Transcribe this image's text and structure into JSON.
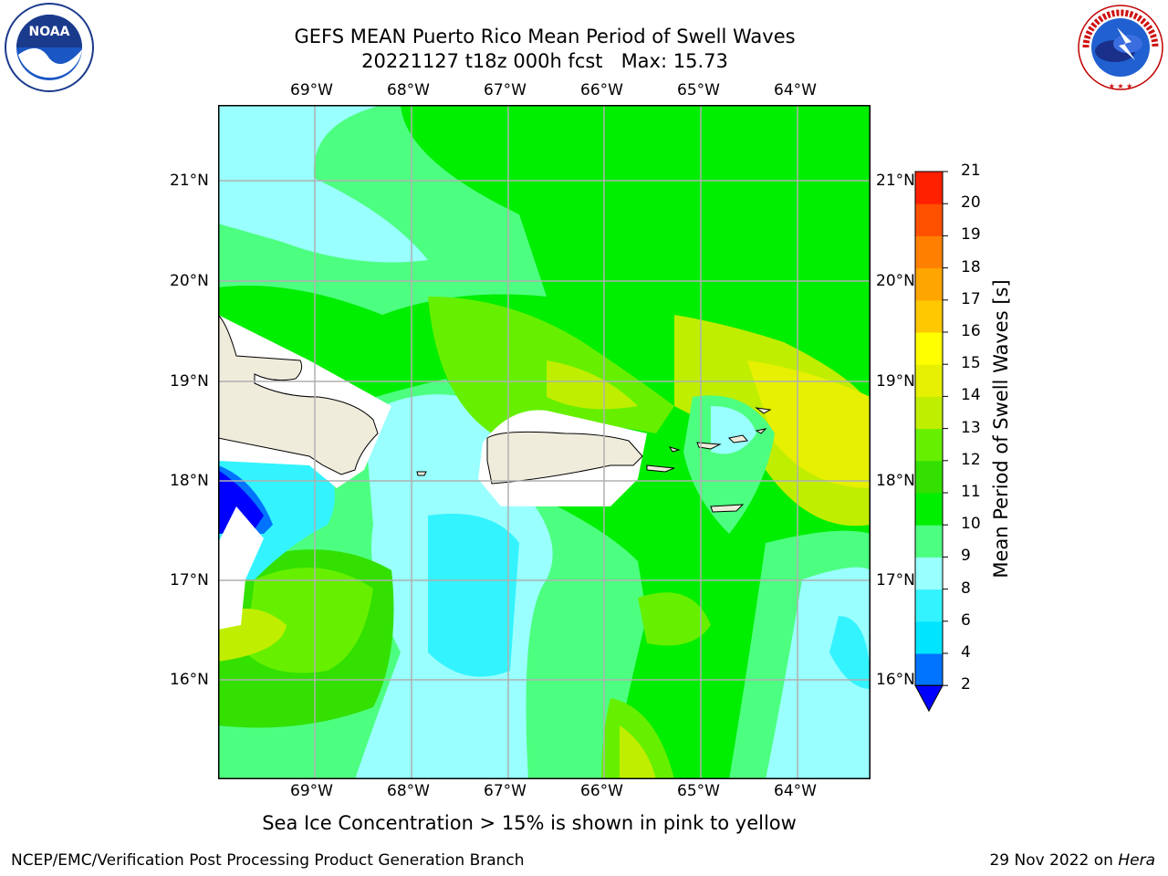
{
  "title": {
    "line1": "GEFS MEAN Puerto Rico Mean Period of Swell Waves",
    "line2": "20221127 t18z 000h fcst   Max: 15.73"
  },
  "subtitle": "Sea Ice Concentration > 15% is shown in pink to yellow",
  "footer": {
    "left": "NCEP/EMC/Verification Post Processing Product Generation Branch",
    "right_prefix": "29 Nov 2022 on ",
    "right_machine": "Hera"
  },
  "logos": {
    "noaa": {
      "text": "NOAA",
      "ring_text": "NATIONAL OCEANIC AND ATMOSPHERIC ADMINISTRATION · U.S. DEPARTMENT OF COMMERCE"
    },
    "nws": {
      "ring_text": "NATIONAL WEATHER SERVICE"
    }
  },
  "map": {
    "lon_labels": [
      "69°W",
      "68°W",
      "67°W",
      "66°W",
      "65°W",
      "64°W"
    ],
    "lat_labels": [
      "21°N",
      "20°N",
      "19°N",
      "18°N",
      "17°N",
      "16°N"
    ],
    "extent": {
      "lon_min": -70.0,
      "lon_max": -63.25,
      "lat_min": 15.0,
      "lat_max": 21.75
    },
    "land_color": "#efecdc",
    "gridline_color": "#b0b0b0"
  },
  "colorbar": {
    "label": "Mean Period of Swell Waves [s]",
    "levels": [
      2,
      4,
      6,
      8,
      9,
      10,
      11,
      12,
      13,
      14,
      15,
      16,
      17,
      18,
      19,
      20,
      21
    ],
    "tick_labels": [
      "2",
      "4",
      "6",
      "8",
      "9",
      "10",
      "11",
      "12",
      "13",
      "14",
      "15",
      "16",
      "17",
      "18",
      "19",
      "20",
      "21"
    ],
    "colors": [
      "#0073ff",
      "#00e5ff",
      "#33f3ff",
      "#99ffff",
      "#4dff80",
      "#00ee00",
      "#33e000",
      "#66f000",
      "#c0ee00",
      "#e6f000",
      "#ffff00",
      "#ffc800",
      "#ffa500",
      "#ff8000",
      "#ff5000",
      "#ff2000"
    ],
    "under_color": "#0000ff",
    "over_color": "#ff0000"
  }
}
